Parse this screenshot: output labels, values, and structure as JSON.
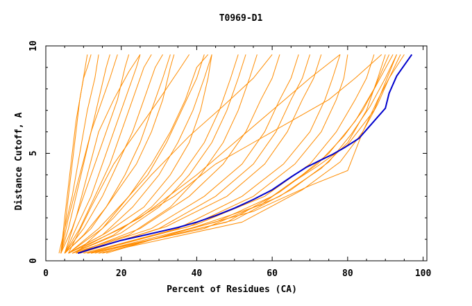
{
  "chart_data": {
    "type": "line",
    "title": "T0969-D1",
    "xlabel": "Percent of Residues (CA)",
    "ylabel": "Distance Cutoff, A",
    "xlim": [
      0,
      101
    ],
    "ylim": [
      0,
      10
    ],
    "xticks": [
      0,
      20,
      40,
      60,
      80,
      100
    ],
    "yticks": [
      0,
      5,
      10
    ],
    "grid": false,
    "colors": {
      "models": "#ff8c00",
      "highlight": "#0000cc",
      "axes": "#000000"
    },
    "highlight": {
      "points": [
        [
          8.5,
          0.35
        ],
        [
          12,
          0.55
        ],
        [
          16,
          0.75
        ],
        [
          20,
          0.95
        ],
        [
          25,
          1.15
        ],
        [
          30,
          1.35
        ],
        [
          35,
          1.55
        ],
        [
          40,
          1.8
        ],
        [
          45,
          2.1
        ],
        [
          50,
          2.45
        ],
        [
          55,
          2.85
        ],
        [
          60,
          3.3
        ],
        [
          65,
          3.9
        ],
        [
          69,
          4.35
        ],
        [
          73,
          4.7
        ],
        [
          76,
          4.95
        ],
        [
          79,
          5.25
        ],
        [
          83,
          5.7
        ],
        [
          86,
          6.3
        ],
        [
          90,
          7.1
        ],
        [
          91,
          7.8
        ],
        [
          93,
          8.6
        ],
        [
          95,
          9.1
        ],
        [
          97,
          9.6
        ]
      ]
    },
    "series": [
      {
        "points": [
          [
            4,
            0.35
          ],
          [
            5,
            1.5
          ],
          [
            6,
            3
          ],
          [
            7,
            4.5
          ],
          [
            8,
            6
          ],
          [
            9,
            7.5
          ],
          [
            10,
            8.5
          ],
          [
            11,
            9
          ],
          [
            12,
            9.6
          ]
        ]
      },
      {
        "points": [
          [
            4,
            0.35
          ],
          [
            5,
            2
          ],
          [
            6,
            3.5
          ],
          [
            7,
            5
          ],
          [
            8,
            6.5
          ],
          [
            9.5,
            8
          ],
          [
            11,
            9.6
          ]
        ]
      },
      {
        "points": [
          [
            3.5,
            0.35
          ],
          [
            5,
            1.5
          ],
          [
            7,
            3
          ],
          [
            9,
            5
          ],
          [
            11,
            7
          ],
          [
            13,
            8.5
          ],
          [
            14,
            9.6
          ]
        ]
      },
      {
        "points": [
          [
            4,
            0.35
          ],
          [
            6,
            1.5
          ],
          [
            8,
            3
          ],
          [
            10,
            4.5
          ],
          [
            12,
            6
          ],
          [
            14,
            7.5
          ],
          [
            16,
            9
          ],
          [
            17,
            9.6
          ]
        ]
      },
      {
        "points": [
          [
            4,
            0.35
          ],
          [
            6,
            2
          ],
          [
            9,
            4
          ],
          [
            12,
            6
          ],
          [
            15,
            7.5
          ],
          [
            17,
            8.5
          ],
          [
            19,
            9.6
          ]
        ]
      },
      {
        "points": [
          [
            4,
            0.35
          ],
          [
            7,
            1.5
          ],
          [
            10,
            3
          ],
          [
            13,
            4.5
          ],
          [
            16,
            6
          ],
          [
            19,
            7.5
          ],
          [
            21,
            9
          ],
          [
            22,
            9.6
          ]
        ]
      },
      {
        "points": [
          [
            5,
            0.35
          ],
          [
            8,
            1.5
          ],
          [
            12,
            3
          ],
          [
            15,
            4.5
          ],
          [
            18,
            6
          ],
          [
            21,
            7.5
          ],
          [
            24,
            9
          ],
          [
            25,
            9.6
          ]
        ]
      },
      {
        "points": [
          [
            5,
            0.35
          ],
          [
            9,
            1.5
          ],
          [
            13,
            3
          ],
          [
            17,
            4.5
          ],
          [
            20,
            6
          ],
          [
            23,
            7.5
          ],
          [
            26,
            9
          ],
          [
            28,
            9.6
          ]
        ]
      },
      {
        "points": [
          [
            5,
            0.35
          ],
          [
            10,
            1.5
          ],
          [
            15,
            3
          ],
          [
            19,
            4.5
          ],
          [
            23,
            6
          ],
          [
            26,
            7.5
          ],
          [
            29,
            9
          ],
          [
            31,
            9.6
          ]
        ]
      },
      {
        "points": [
          [
            5,
            0.35
          ],
          [
            10,
            1.2
          ],
          [
            16,
            2.5
          ],
          [
            21,
            4
          ],
          [
            25,
            5.5
          ],
          [
            28,
            7
          ],
          [
            31,
            8.5
          ],
          [
            33,
            9.6
          ]
        ]
      },
      {
        "points": [
          [
            5,
            0.35
          ],
          [
            12,
            1.5
          ],
          [
            18,
            3
          ],
          [
            24,
            4.5
          ],
          [
            28,
            6
          ],
          [
            31,
            7.5
          ],
          [
            33,
            9
          ],
          [
            34,
            9.6
          ]
        ]
      },
      {
        "points": [
          [
            6,
            0.35
          ],
          [
            14,
            1.5
          ],
          [
            21,
            2.8
          ],
          [
            27,
            4
          ],
          [
            32,
            5.5
          ],
          [
            36,
            7
          ],
          [
            40,
            8.5
          ],
          [
            42,
            9.6
          ]
        ]
      },
      {
        "points": [
          [
            6,
            0.35
          ],
          [
            15,
            1.2
          ],
          [
            23,
            2.5
          ],
          [
            30,
            4
          ],
          [
            35,
            5.5
          ],
          [
            39,
            7
          ],
          [
            42,
            8.5
          ],
          [
            44,
            9.6
          ]
        ]
      },
      {
        "points": [
          [
            6,
            0.35
          ],
          [
            15,
            1.5
          ],
          [
            22,
            3
          ],
          [
            28,
            4.5
          ],
          [
            33,
            6
          ],
          [
            37,
            7.5
          ],
          [
            40,
            9
          ],
          [
            43,
            9.6
          ]
        ]
      },
      {
        "points": [
          [
            6,
            0.35
          ],
          [
            16,
            1.3
          ],
          [
            26,
            2.5
          ],
          [
            33,
            4
          ],
          [
            38,
            5.5
          ],
          [
            41,
            7
          ],
          [
            43,
            8.5
          ],
          [
            44,
            9.6
          ]
        ]
      },
      {
        "points": [
          [
            7,
            0.35
          ],
          [
            18,
            1.2
          ],
          [
            28,
            2.5
          ],
          [
            36,
            4
          ],
          [
            42,
            5.5
          ],
          [
            46,
            7
          ],
          [
            49,
            8.5
          ],
          [
            51,
            9.6
          ]
        ]
      },
      {
        "points": [
          [
            7,
            0.35
          ],
          [
            20,
            1.3
          ],
          [
            30,
            2.5
          ],
          [
            38,
            4
          ],
          [
            44,
            5.5
          ],
          [
            48,
            7
          ],
          [
            51,
            8.5
          ],
          [
            53,
            9.6
          ]
        ]
      },
      {
        "points": [
          [
            7,
            0.35
          ],
          [
            22,
            1.2
          ],
          [
            33,
            2.5
          ],
          [
            41,
            4
          ],
          [
            47,
            5.5
          ],
          [
            51,
            7
          ],
          [
            54,
            8.5
          ],
          [
            56,
            9.6
          ]
        ]
      },
      {
        "points": [
          [
            8,
            0.35
          ],
          [
            25,
            1.5
          ],
          [
            38,
            3
          ],
          [
            47,
            4.5
          ],
          [
            53,
            6
          ],
          [
            57,
            7.5
          ],
          [
            60,
            8.5
          ],
          [
            62,
            9.6
          ]
        ]
      },
      {
        "points": [
          [
            8,
            0.35
          ],
          [
            28,
            1.5
          ],
          [
            42,
            3
          ],
          [
            52,
            4.5
          ],
          [
            58,
            6
          ],
          [
            62,
            7.5
          ],
          [
            65,
            8.5
          ],
          [
            67,
            9.6
          ]
        ]
      },
      {
        "points": [
          [
            9,
            0.35
          ],
          [
            30,
            1.5
          ],
          [
            45,
            3
          ],
          [
            55,
            4.5
          ],
          [
            61,
            6
          ],
          [
            65,
            7.5
          ],
          [
            68,
            8.5
          ],
          [
            70,
            9.6
          ]
        ]
      },
      {
        "points": [
          [
            9,
            0.35
          ],
          [
            32,
            1.6
          ],
          [
            48,
            3
          ],
          [
            58,
            4.5
          ],
          [
            64,
            6
          ],
          [
            68,
            7.5
          ],
          [
            71,
            8.5
          ],
          [
            73,
            9.6
          ]
        ]
      },
      {
        "points": [
          [
            10,
            0.35
          ],
          [
            35,
            1.5
          ],
          [
            52,
            3
          ],
          [
            63,
            4.5
          ],
          [
            70,
            6
          ],
          [
            74,
            7.5
          ],
          [
            76,
            8.5
          ],
          [
            78,
            9.6
          ]
        ]
      },
      {
        "points": [
          [
            10,
            0.35
          ],
          [
            38,
            1.6
          ],
          [
            55,
            3
          ],
          [
            66,
            4.5
          ],
          [
            73,
            6
          ],
          [
            77,
            7.5
          ],
          [
            79,
            8.5
          ],
          [
            80,
            9.6
          ]
        ]
      },
      {
        "points": [
          [
            11,
            0.35
          ],
          [
            40,
            1.7
          ],
          [
            58,
            3
          ],
          [
            70,
            4.5
          ],
          [
            77,
            6
          ],
          [
            82,
            7.5
          ],
          [
            85,
            8.5
          ],
          [
            87,
            9.6
          ]
        ]
      },
      {
        "points": [
          [
            11,
            0.35
          ],
          [
            42,
            1.5
          ],
          [
            62,
            3
          ],
          [
            73,
            4.3
          ],
          [
            80,
            5.5
          ],
          [
            85,
            7
          ],
          [
            88,
            8.5
          ],
          [
            90,
            9.6
          ]
        ]
      },
      {
        "points": [
          [
            12,
            0.35
          ],
          [
            45,
            1.8
          ],
          [
            60,
            3
          ],
          [
            68,
            4
          ],
          [
            75,
            5
          ],
          [
            82,
            6.5
          ],
          [
            87,
            8
          ],
          [
            91,
            9.6
          ]
        ]
      },
      {
        "points": [
          [
            12,
            0.35
          ],
          [
            48,
            1.8
          ],
          [
            62,
            3.2
          ],
          [
            72,
            4.5
          ],
          [
            79,
            5.8
          ],
          [
            84,
            7
          ],
          [
            88,
            8.3
          ],
          [
            92,
            9.6
          ]
        ]
      },
      {
        "points": [
          [
            13,
            0.35
          ],
          [
            50,
            1.9
          ],
          [
            65,
            3.3
          ],
          [
            75,
            4.6
          ],
          [
            81,
            5.9
          ],
          [
            86,
            7.2
          ],
          [
            90,
            8.5
          ],
          [
            93,
            9.6
          ]
        ]
      },
      {
        "points": [
          [
            14,
            0.35
          ],
          [
            52,
            1.8
          ],
          [
            68,
            3.3
          ],
          [
            78,
            4.6
          ],
          [
            84,
            6
          ],
          [
            88,
            7.3
          ],
          [
            91,
            8.5
          ],
          [
            94,
            9.6
          ]
        ]
      },
      {
        "points": [
          [
            15,
            0.35
          ],
          [
            55,
            2.3
          ],
          [
            70,
            3.5
          ],
          [
            80,
            4.2
          ],
          [
            84,
            6
          ],
          [
            88,
            7.5
          ],
          [
            91,
            8.5
          ],
          [
            95,
            9.6
          ]
        ]
      },
      {
        "points": [
          [
            16,
            0.35
          ],
          [
            40,
            1.6
          ],
          [
            57,
            2.6
          ],
          [
            64,
            3.5
          ],
          [
            72,
            4.4
          ],
          [
            80,
            5.4
          ],
          [
            87,
            7
          ],
          [
            93,
            9.6
          ]
        ]
      },
      {
        "points": [
          [
            6,
            0.35
          ],
          [
            20,
            1.5
          ],
          [
            34,
            3
          ],
          [
            45,
            4.5
          ],
          [
            55,
            5.5
          ],
          [
            65,
            6.5
          ],
          [
            75,
            7.5
          ],
          [
            82,
            8.5
          ],
          [
            89,
            9.6
          ]
        ]
      },
      {
        "points": [
          [
            7,
            0.35
          ],
          [
            25,
            2
          ],
          [
            40,
            4
          ],
          [
            50,
            5.5
          ],
          [
            60,
            7
          ],
          [
            70,
            8.5
          ],
          [
            78,
            9.6
          ]
        ]
      },
      {
        "points": [
          [
            8,
            0.35
          ],
          [
            18,
            2
          ],
          [
            28,
            4
          ],
          [
            38,
            5.8
          ],
          [
            47,
            7.2
          ],
          [
            55,
            8.5
          ],
          [
            60,
            9.6
          ]
        ]
      },
      {
        "points": [
          [
            5,
            0.35
          ],
          [
            8,
            2
          ],
          [
            11,
            4
          ],
          [
            14,
            6
          ],
          [
            18,
            7.5
          ],
          [
            22,
            8.8
          ],
          [
            25,
            9.6
          ]
        ]
      },
      {
        "points": [
          [
            6,
            0.35
          ],
          [
            12,
            2.5
          ],
          [
            18,
            4.5
          ],
          [
            24,
            6
          ],
          [
            30,
            7.5
          ],
          [
            35,
            8.8
          ],
          [
            38,
            9.6
          ]
        ]
      }
    ]
  }
}
